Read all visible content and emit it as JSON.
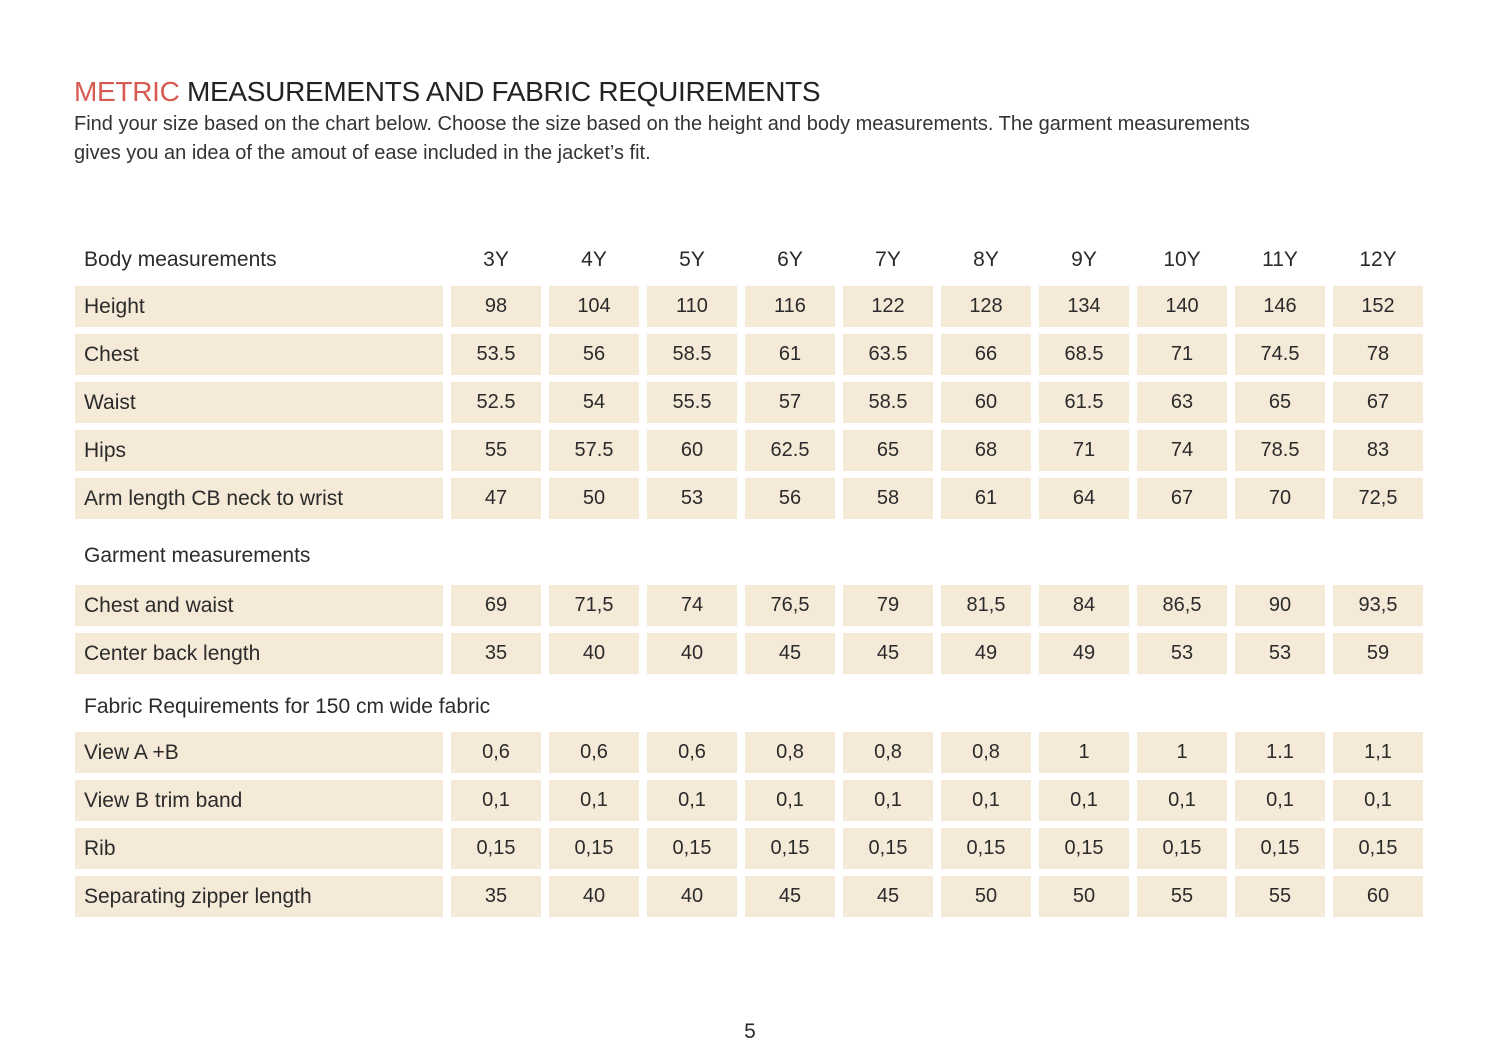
{
  "colors": {
    "accent": "#d65c52",
    "row_bg": "#f5e9d8",
    "text": "#2b2b2b"
  },
  "header": {
    "title_accent": "METRIC",
    "title_rest": " MEASUREMENTS AND FABRIC REQUIREMENTS",
    "intro_line1": "Find your size based on the chart below. Choose the size based on the height and body measurements. The garment measurements",
    "intro_line2": "gives you an idea of the amout of ease included in the jacket’s fit."
  },
  "table": {
    "header_label": "Body measurements",
    "sizes": [
      "3Y",
      "4Y",
      "5Y",
      "6Y",
      "7Y",
      "8Y",
      "9Y",
      "10Y",
      "11Y",
      "12Y"
    ],
    "body_rows": [
      {
        "label": "Height",
        "values": [
          "98",
          "104",
          "110",
          "116",
          "122",
          "128",
          "134",
          "140",
          "146",
          "152"
        ]
      },
      {
        "label": "Chest",
        "values": [
          "53.5",
          "56",
          "58.5",
          "61",
          "63.5",
          "66",
          "68.5",
          "71",
          "74.5",
          "78"
        ]
      },
      {
        "label": "Waist",
        "values": [
          "52.5",
          "54",
          "55.5",
          "57",
          "58.5",
          "60",
          "61.5",
          "63",
          "65",
          "67"
        ]
      },
      {
        "label": "Hips",
        "values": [
          "55",
          "57.5",
          "60",
          "62.5",
          "65",
          "68",
          "71",
          "74",
          "78.5",
          "83"
        ]
      },
      {
        "label": "Arm length CB neck to wrist",
        "values": [
          "47",
          "50",
          "53",
          "56",
          "58",
          "61",
          "64",
          "67",
          "70",
          "72,5"
        ]
      }
    ],
    "garment_section_label": "Garment measurements",
    "garment_rows": [
      {
        "label": "Chest and waist",
        "values": [
          "69",
          "71,5",
          "74",
          "76,5",
          "79",
          "81,5",
          "84",
          "86,5",
          "90",
          "93,5"
        ]
      },
      {
        "label": "Center back length",
        "values": [
          "35",
          "40",
          "40",
          "45",
          "45",
          "49",
          "49",
          "53",
          "53",
          "59"
        ]
      }
    ],
    "fabric_section_label": "Fabric Requirements for 150 cm wide fabric",
    "fabric_rows": [
      {
        "label": "View A +B",
        "values": [
          "0,6",
          "0,6",
          "0,6",
          "0,8",
          "0,8",
          "0,8",
          "1",
          "1",
          "1.1",
          "1,1"
        ]
      },
      {
        "label": "View B trim band",
        "values": [
          "0,1",
          "0,1",
          "0,1",
          "0,1",
          "0,1",
          "0,1",
          "0,1",
          "0,1",
          "0,1",
          "0,1"
        ]
      },
      {
        "label": "Rib",
        "values": [
          "0,15",
          "0,15",
          "0,15",
          "0,15",
          "0,15",
          "0,15",
          "0,15",
          "0,15",
          "0,15",
          "0,15"
        ]
      },
      {
        "label": "Separating zipper length",
        "values": [
          "35",
          "40",
          "40",
          "45",
          "45",
          "50",
          "50",
          "55",
          "55",
          "60"
        ]
      }
    ]
  },
  "footer": {
    "page_number": "5"
  }
}
